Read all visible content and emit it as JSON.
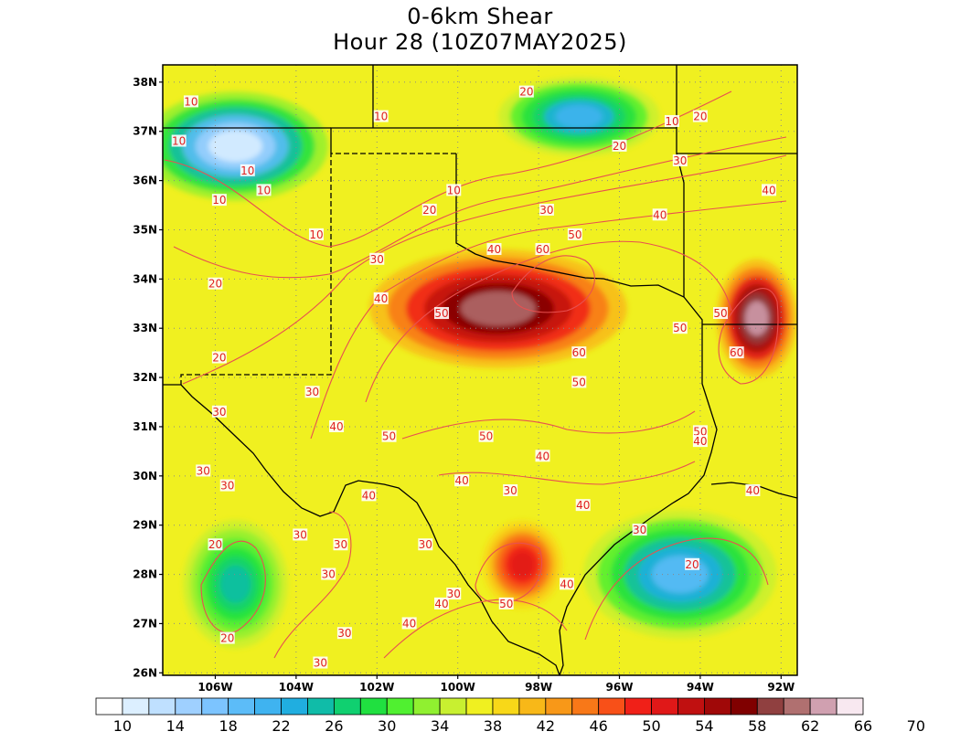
{
  "title": {
    "line1": "0-6km Shear",
    "line2": "Hour 28 (10Z07MAY2025)"
  },
  "map": {
    "lon_range": [
      -107.3,
      -91.6
    ],
    "lat_range": [
      25.95,
      38.35
    ],
    "lat_ticks": [
      "26N",
      "27N",
      "28N",
      "29N",
      "30N",
      "31N",
      "32N",
      "33N",
      "34N",
      "35N",
      "36N",
      "37N",
      "38N"
    ],
    "lat_values": [
      26,
      27,
      28,
      29,
      30,
      31,
      32,
      33,
      34,
      35,
      36,
      37,
      38
    ],
    "lon_ticks": [
      "106W",
      "104W",
      "102W",
      "100W",
      "98W",
      "96W",
      "94W",
      "92W"
    ],
    "lon_values": [
      -106,
      -104,
      -102,
      -100,
      -98,
      -96,
      -94,
      -92
    ],
    "grid": "dotted",
    "shear_field": [
      {
        "lon": -99.0,
        "lat": 33.4,
        "value": 60,
        "sx": 3.2,
        "sy": 1.2
      },
      {
        "lon": -92.6,
        "lat": 33.2,
        "value": 62,
        "sx": 1.0,
        "sy": 1.2
      },
      {
        "lon": -98.4,
        "lat": 28.2,
        "value": 50,
        "sx": 1.0,
        "sy": 0.9
      },
      {
        "lon": -105.5,
        "lat": 36.7,
        "value": 10,
        "sx": 2.3,
        "sy": 1.1
      },
      {
        "lon": -97.0,
        "lat": 37.3,
        "value": 20,
        "sx": 2.0,
        "sy": 0.8
      },
      {
        "lon": -94.5,
        "lat": 28.0,
        "value": 18,
        "sx": 2.4,
        "sy": 1.3
      },
      {
        "lon": -105.5,
        "lat": 27.8,
        "value": 24,
        "sx": 1.3,
        "sy": 1.3
      }
    ],
    "contour_labels": [
      {
        "text": "10",
        "lon": -106.6,
        "lat": 37.6
      },
      {
        "text": "10",
        "lon": -101.9,
        "lat": 37.3
      },
      {
        "text": "10",
        "lon": -105.2,
        "lat": 36.2
      },
      {
        "text": "10",
        "lon": -104.8,
        "lat": 35.8
      },
      {
        "text": "10",
        "lon": -105.9,
        "lat": 35.6
      },
      {
        "text": "10",
        "lon": -106.9,
        "lat": 36.8
      },
      {
        "text": "10",
        "lon": -103.5,
        "lat": 34.9
      },
      {
        "text": "10",
        "lon": -100.1,
        "lat": 35.8
      },
      {
        "text": "10",
        "lon": -94.7,
        "lat": 37.2
      },
      {
        "text": "20",
        "lon": -98.3,
        "lat": 37.8
      },
      {
        "text": "20",
        "lon": -94.0,
        "lat": 37.3
      },
      {
        "text": "20",
        "lon": -96.0,
        "lat": 36.7
      },
      {
        "text": "20",
        "lon": -100.7,
        "lat": 35.4
      },
      {
        "text": "20",
        "lon": -106.0,
        "lat": 33.9
      },
      {
        "text": "20",
        "lon": -105.9,
        "lat": 32.4
      },
      {
        "text": "30",
        "lon": -94.5,
        "lat": 36.4
      },
      {
        "text": "30",
        "lon": -97.8,
        "lat": 35.4
      },
      {
        "text": "30",
        "lon": -102.0,
        "lat": 34.4
      },
      {
        "text": "30",
        "lon": -103.6,
        "lat": 31.7
      },
      {
        "text": "30",
        "lon": -105.9,
        "lat": 31.3
      },
      {
        "text": "30",
        "lon": -106.3,
        "lat": 30.1
      },
      {
        "text": "30",
        "lon": -105.7,
        "lat": 29.8
      },
      {
        "text": "40",
        "lon": -92.3,
        "lat": 35.8
      },
      {
        "text": "40",
        "lon": -95.0,
        "lat": 35.3
      },
      {
        "text": "40",
        "lon": -99.1,
        "lat": 34.6
      },
      {
        "text": "40",
        "lon": -101.9,
        "lat": 33.6
      },
      {
        "text": "50",
        "lon": -97.1,
        "lat": 34.9
      },
      {
        "text": "60",
        "lon": -97.9,
        "lat": 34.6
      },
      {
        "text": "50",
        "lon": -100.4,
        "lat": 33.3
      },
      {
        "text": "50",
        "lon": -93.5,
        "lat": 33.3
      },
      {
        "text": "50",
        "lon": -94.5,
        "lat": 33.0
      },
      {
        "text": "60",
        "lon": -97.0,
        "lat": 32.5
      },
      {
        "text": "60",
        "lon": -93.1,
        "lat": 32.5
      },
      {
        "text": "50",
        "lon": -97.0,
        "lat": 31.9
      },
      {
        "text": "40",
        "lon": -103.0,
        "lat": 31.0
      },
      {
        "text": "50",
        "lon": -101.7,
        "lat": 30.8
      },
      {
        "text": "50",
        "lon": -99.3,
        "lat": 30.8
      },
      {
        "text": "50",
        "lon": -94.0,
        "lat": 30.9
      },
      {
        "text": "40",
        "lon": -94.0,
        "lat": 30.7
      },
      {
        "text": "40",
        "lon": -97.9,
        "lat": 30.4
      },
      {
        "text": "40",
        "lon": -99.9,
        "lat": 29.9
      },
      {
        "text": "40",
        "lon": -102.2,
        "lat": 29.6
      },
      {
        "text": "30",
        "lon": -98.7,
        "lat": 29.7
      },
      {
        "text": "40",
        "lon": -96.9,
        "lat": 29.4
      },
      {
        "text": "40",
        "lon": -92.7,
        "lat": 29.7
      },
      {
        "text": "30",
        "lon": -95.5,
        "lat": 28.9
      },
      {
        "text": "30",
        "lon": -103.9,
        "lat": 28.8
      },
      {
        "text": "30",
        "lon": -102.9,
        "lat": 28.6
      },
      {
        "text": "30",
        "lon": -100.8,
        "lat": 28.6
      },
      {
        "text": "20",
        "lon": -106.0,
        "lat": 28.6
      },
      {
        "text": "30",
        "lon": -103.2,
        "lat": 28.0
      },
      {
        "text": "20",
        "lon": -94.2,
        "lat": 28.2
      },
      {
        "text": "40",
        "lon": -97.3,
        "lat": 27.8
      },
      {
        "text": "30",
        "lon": -100.1,
        "lat": 27.6
      },
      {
        "text": "40",
        "lon": -100.4,
        "lat": 27.4
      },
      {
        "text": "50",
        "lon": -98.8,
        "lat": 27.4
      },
      {
        "text": "40",
        "lon": -101.2,
        "lat": 27.0
      },
      {
        "text": "30",
        "lon": -102.8,
        "lat": 26.8
      },
      {
        "text": "20",
        "lon": -105.7,
        "lat": 26.7
      },
      {
        "text": "30",
        "lon": -103.4,
        "lat": 26.2
      }
    ]
  },
  "colorbar": {
    "colors": [
      "#ffffff",
      "#dcefff",
      "#bfe0ff",
      "#9fd0ff",
      "#7cc4ff",
      "#5cbcf8",
      "#3fb3f0",
      "#20aee0",
      "#10bca8",
      "#10d070",
      "#20e040",
      "#50f030",
      "#90f030",
      "#c8f030",
      "#f0f020",
      "#f8d818",
      "#f8b818",
      "#f89818",
      "#f87818",
      "#f85018",
      "#f02018",
      "#e01818",
      "#c01010",
      "#a00808",
      "#800000",
      "#904040",
      "#b07070",
      "#d0a0b0",
      "#f8e8f0"
    ],
    "labels": [
      "10",
      "14",
      "18",
      "22",
      "26",
      "30",
      "34",
      "38",
      "42",
      "46",
      "50",
      "54",
      "58",
      "62",
      "66",
      "70"
    ]
  }
}
